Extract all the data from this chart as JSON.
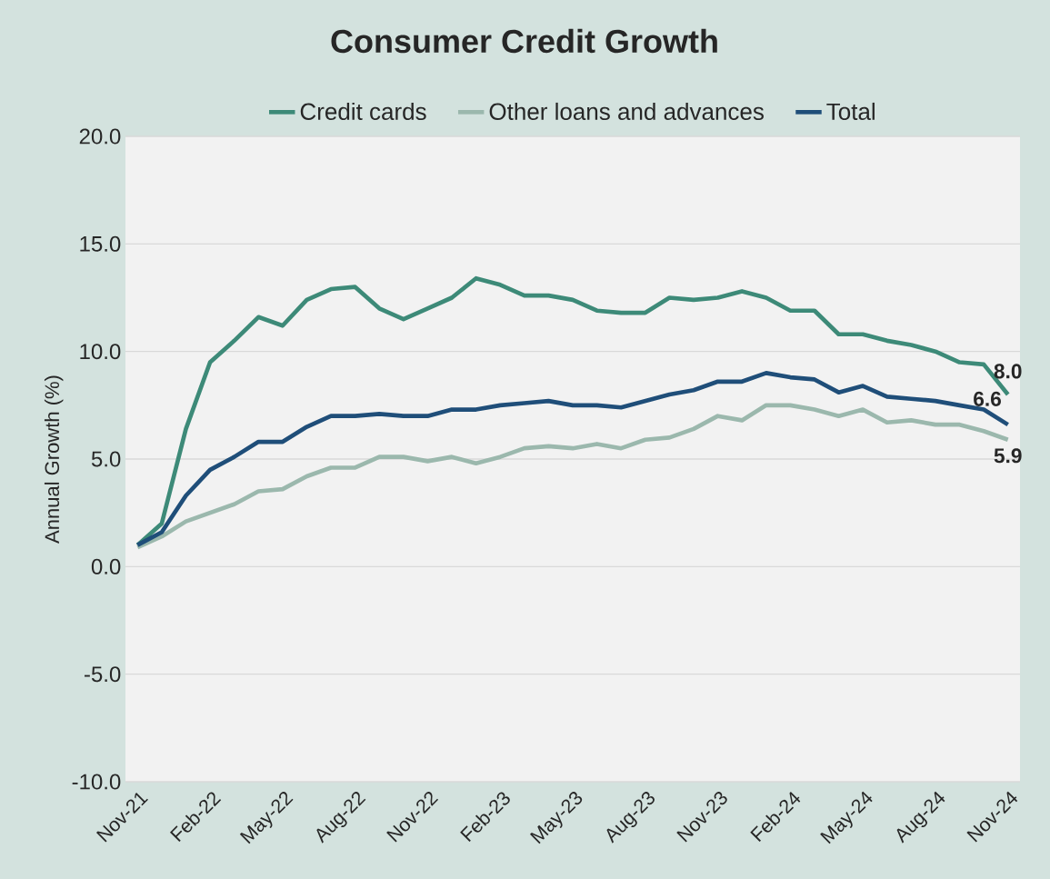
{
  "chart_data": {
    "type": "line",
    "title": "Consumer Credit Growth",
    "ylabel": "Annual Growth (%)",
    "categories": [
      "Nov-21",
      null,
      null,
      "Feb-22",
      null,
      null,
      "May-22",
      null,
      null,
      "Aug-22",
      null,
      null,
      "Nov-22",
      null,
      null,
      "Feb-23",
      null,
      null,
      "May-23",
      null,
      null,
      "Aug-23",
      null,
      null,
      "Nov-23",
      null,
      null,
      "Feb-24",
      null,
      null,
      "May-24",
      null,
      null,
      "Aug-24",
      null,
      null,
      "Nov-24"
    ],
    "series": [
      {
        "name": "Credit cards",
        "color": "#3d8a78",
        "values": [
          1.0,
          2.0,
          6.4,
          9.5,
          10.5,
          11.6,
          11.2,
          12.4,
          12.9,
          13.0,
          12.0,
          11.5,
          12.0,
          12.5,
          13.4,
          13.1,
          12.6,
          12.6,
          12.4,
          11.9,
          11.8,
          11.8,
          12.5,
          12.4,
          12.5,
          12.8,
          12.5,
          11.9,
          11.9,
          10.8,
          10.8,
          10.5,
          10.3,
          10.0,
          9.5,
          9.4,
          8.0
        ],
        "value_labels": [
          null,
          null,
          null,
          null,
          null,
          null,
          null,
          null,
          null,
          null,
          null,
          null,
          null,
          null,
          null,
          null,
          null,
          null,
          null,
          null,
          null,
          null,
          null,
          null,
          null,
          null,
          null,
          null,
          null,
          null,
          null,
          null,
          null,
          null,
          null,
          null,
          "8.0"
        ]
      },
      {
        "name": "Other loans and advances",
        "color": "#9bb8ad",
        "values": [
          0.9,
          1.4,
          2.1,
          2.5,
          2.9,
          3.5,
          3.6,
          4.2,
          4.6,
          4.6,
          5.1,
          5.1,
          4.9,
          5.1,
          4.8,
          5.1,
          5.5,
          5.6,
          5.5,
          5.7,
          5.5,
          5.9,
          6.0,
          6.4,
          7.0,
          6.8,
          7.5,
          7.5,
          7.3,
          7.0,
          7.3,
          6.7,
          6.8,
          6.6,
          6.6,
          6.3,
          5.9
        ],
        "value_labels": [
          null,
          null,
          null,
          null,
          null,
          null,
          null,
          null,
          null,
          null,
          null,
          null,
          null,
          null,
          null,
          null,
          null,
          null,
          null,
          null,
          null,
          null,
          null,
          null,
          null,
          null,
          null,
          null,
          null,
          null,
          null,
          null,
          null,
          null,
          null,
          null,
          "5.9"
        ]
      },
      {
        "name": "Total",
        "color": "#1f4e79",
        "values": [
          1.0,
          1.6,
          3.3,
          4.5,
          5.1,
          5.8,
          5.8,
          6.5,
          7.0,
          7.0,
          7.1,
          7.0,
          7.0,
          7.3,
          7.3,
          7.5,
          7.6,
          7.7,
          7.5,
          7.5,
          7.4,
          7.7,
          8.0,
          8.2,
          8.6,
          8.6,
          9.0,
          8.8,
          8.7,
          8.1,
          8.4,
          7.9,
          7.8,
          7.7,
          7.5,
          7.3,
          6.6
        ],
        "value_labels": [
          null,
          null,
          null,
          null,
          null,
          null,
          null,
          null,
          null,
          null,
          null,
          null,
          null,
          null,
          null,
          null,
          null,
          null,
          null,
          null,
          null,
          null,
          null,
          null,
          null,
          null,
          null,
          null,
          null,
          null,
          null,
          null,
          null,
          null,
          null,
          null,
          "6.6"
        ]
      }
    ],
    "ylim": [
      -10,
      20
    ],
    "yticks": [
      {
        "value": -10,
        "label": "-10.0"
      },
      {
        "value": -5,
        "label": "-5.0"
      },
      {
        "value": 0,
        "label": "0.0"
      },
      {
        "value": 5,
        "label": "5.0"
      },
      {
        "value": 10,
        "label": "10.0"
      },
      {
        "value": 15,
        "label": "15.0"
      },
      {
        "value": 20,
        "label": "20.0"
      }
    ],
    "grid": "y",
    "legend": "top"
  }
}
